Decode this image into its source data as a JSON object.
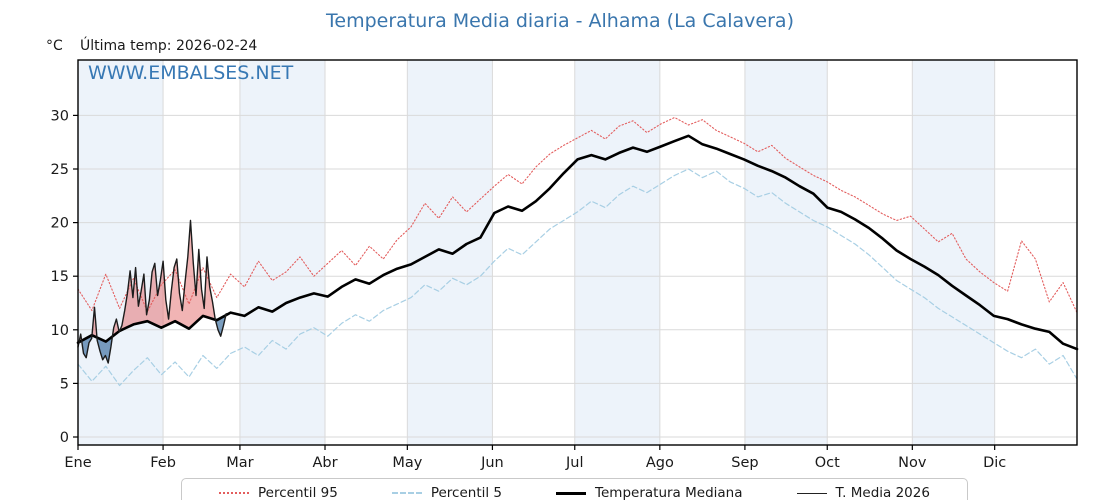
{
  "header": {
    "title": "Temperatura Media diaria - Alhama (La Calavera)",
    "title_color": "#3a76ad",
    "y_axis_unit": "°C",
    "last_temp_label": "Última temp: 2026-02-24",
    "watermark": "WWW.EMBALSES.NET",
    "watermark_color": "#3778b4"
  },
  "legend": {
    "items": [
      {
        "label": "Percentil 95",
        "swatch": "dotted",
        "color": "#e35d5d"
      },
      {
        "label": "Percentil 5",
        "swatch": "dashed",
        "color": "#a8cfe4"
      },
      {
        "label": "Temperatura Mediana",
        "swatch": "thick",
        "color": "#000000"
      },
      {
        "label": "T. Media 2026",
        "swatch": "thin",
        "color": "#222222"
      }
    ]
  },
  "chart_data": {
    "type": "line",
    "title": "Temperatura Media diaria - Alhama (La Calavera)",
    "xlabel": "",
    "ylabel": "°C",
    "x_tick_labels": [
      "Ene",
      "Feb",
      "Mar",
      "Abr",
      "May",
      "Jun",
      "Jul",
      "Ago",
      "Sep",
      "Oct",
      "Nov",
      "Dic"
    ],
    "month_days": [
      31,
      28,
      31,
      30,
      31,
      30,
      31,
      31,
      30,
      31,
      30,
      31
    ],
    "y_ticks": [
      0,
      5,
      10,
      15,
      20,
      25,
      30
    ],
    "ylim": [
      -0.75,
      35.2
    ],
    "grid": true,
    "band_color": "#edf3fa",
    "grid_color": "#dadada",
    "fill_above_color": "rgba(228,106,106,0.5)",
    "fill_below_color": "rgba(78,124,170,0.75)",
    "series": [
      {
        "name": "Percentil 95",
        "color": "#e35d5d",
        "style": "dotted",
        "width": 1.1,
        "x_mode": "year_fraction",
        "values": [
          13.8,
          11.8,
          15.2,
          12.0,
          14.8,
          11.7,
          14.2,
          15.6,
          12.4,
          15.8,
          13.0,
          15.2,
          14.0,
          16.4,
          14.6,
          15.4,
          16.8,
          15.0,
          16.2,
          17.4,
          16.0,
          17.8,
          16.6,
          18.4,
          19.6,
          21.8,
          20.4,
          22.4,
          21.0,
          22.2,
          23.4,
          24.5,
          23.6,
          25.2,
          26.4,
          27.2,
          27.9,
          28.6,
          27.8,
          29.0,
          29.5,
          28.4,
          29.2,
          29.8,
          29.1,
          29.6,
          28.6,
          28.0,
          27.4,
          26.6,
          27.2,
          26.0,
          25.2,
          24.4,
          23.8,
          23.0,
          22.4,
          21.6,
          20.8,
          20.2,
          20.6,
          19.4,
          18.2,
          19.0,
          16.6,
          15.4,
          14.4,
          13.6,
          18.3,
          16.6,
          12.6,
          14.4,
          11.6
        ]
      },
      {
        "name": "Percentil 5",
        "color": "#a8cfe4",
        "style": "dashed",
        "width": 1.2,
        "x_mode": "year_fraction",
        "values": [
          6.8,
          5.2,
          6.6,
          4.8,
          6.2,
          7.4,
          5.8,
          7.0,
          5.6,
          7.6,
          6.4,
          7.8,
          8.4,
          7.6,
          9.0,
          8.2,
          9.6,
          10.2,
          9.4,
          10.6,
          11.4,
          10.8,
          11.8,
          12.4,
          13.0,
          14.2,
          13.6,
          14.8,
          14.2,
          15.0,
          16.4,
          17.6,
          17.0,
          18.2,
          19.4,
          20.2,
          21.0,
          22.0,
          21.4,
          22.6,
          23.4,
          22.8,
          23.6,
          24.4,
          25.0,
          24.2,
          24.8,
          23.8,
          23.2,
          22.4,
          22.8,
          21.8,
          21.0,
          20.2,
          19.6,
          18.8,
          18.0,
          17.0,
          15.8,
          14.6,
          13.8,
          13.0,
          12.0,
          11.2,
          10.4,
          9.6,
          8.8,
          8.0,
          7.4,
          8.2,
          6.8,
          7.6,
          5.4
        ]
      },
      {
        "name": "Temperatura Mediana",
        "color": "#000000",
        "style": "solid",
        "width": 2.6,
        "x_mode": "year_fraction",
        "values": [
          8.8,
          9.5,
          8.9,
          9.9,
          10.5,
          10.8,
          10.2,
          10.8,
          10.1,
          11.3,
          10.9,
          11.6,
          11.3,
          12.1,
          11.7,
          12.5,
          13.0,
          13.4,
          13.1,
          14.0,
          14.7,
          14.3,
          15.1,
          15.7,
          16.1,
          16.8,
          17.5,
          17.1,
          18.0,
          18.6,
          20.9,
          21.5,
          21.1,
          22.0,
          23.2,
          24.6,
          25.9,
          26.3,
          25.9,
          26.5,
          27.0,
          26.6,
          27.1,
          27.6,
          28.1,
          27.3,
          26.9,
          26.4,
          25.9,
          25.3,
          24.8,
          24.2,
          23.4,
          22.7,
          21.4,
          21.0,
          20.3,
          19.5,
          18.5,
          17.4,
          16.6,
          15.9,
          15.1,
          14.1,
          13.2,
          12.3,
          11.3,
          11.0,
          10.5,
          10.1,
          9.8,
          8.7,
          8.2
        ]
      },
      {
        "name": "T. Media 2026",
        "color": "#1c1c1c",
        "style": "solid",
        "width": 1.4,
        "x_mode": "daily",
        "start_day": 0,
        "fill_against": "Temperatura Mediana",
        "values": [
          8.4,
          9.6,
          7.8,
          7.4,
          8.8,
          9.2,
          12.1,
          9.0,
          8.0,
          7.2,
          7.6,
          6.9,
          8.4,
          10.2,
          11.0,
          9.8,
          10.4,
          11.8,
          13.4,
          15.5,
          13.0,
          15.8,
          12.2,
          13.6,
          15.2,
          11.4,
          12.8,
          15.4,
          16.2,
          13.2,
          14.6,
          16.4,
          12.8,
          11.0,
          13.6,
          15.8,
          16.6,
          13.4,
          11.8,
          14.4,
          16.8,
          20.2,
          16.2,
          13.2,
          17.5,
          13.8,
          12.0,
          16.8,
          14.0,
          12.6,
          11.0,
          10.0,
          9.4,
          10.4,
          11.5
        ]
      }
    ],
    "legend_position": "bottom"
  }
}
